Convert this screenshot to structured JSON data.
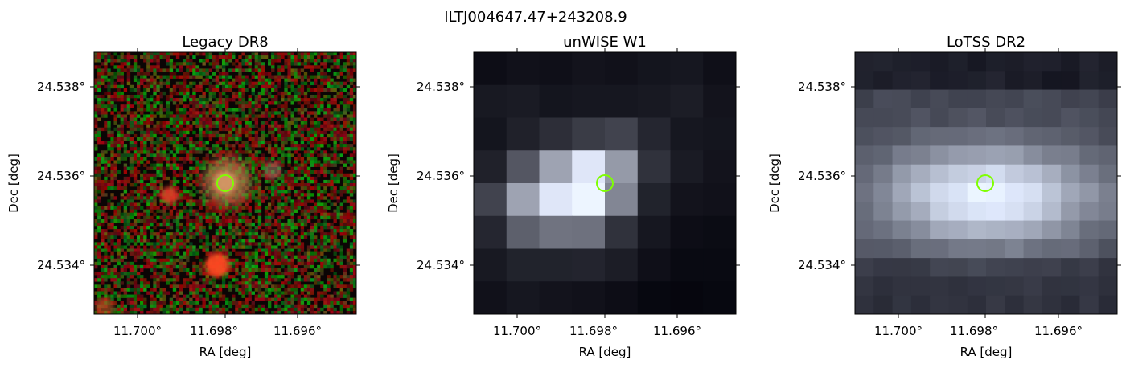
{
  "figure": {
    "title": "ILTJ004647.47+243208.9"
  },
  "panels": [
    {
      "title": "Legacy DR8",
      "xlabel": "RA [deg]",
      "ylabel": "Dec [deg]",
      "x_ticks": [
        "11.700°",
        "11.698°",
        "11.696°"
      ],
      "y_ticks": [
        "24.538°",
        "24.536°",
        "24.534°"
      ],
      "image": "colour optical cutout, red/green noise background with three compact sources"
    },
    {
      "title": "unWISE W1",
      "xlabel": "RA [deg]",
      "ylabel": "Dec [deg]",
      "x_ticks": [
        "11.700°",
        "11.698°",
        "11.696°"
      ],
      "y_ticks": [
        "24.538°",
        "24.536°",
        "24.534°"
      ],
      "image": "coarse-pixel grayscale infrared cutout with bright central source"
    },
    {
      "title": "LoTSS DR2",
      "xlabel": "RA [deg]",
      "ylabel": "Dec [deg]",
      "x_ticks": [
        "11.700°",
        "11.698°",
        "11.696°"
      ],
      "y_ticks": [
        "24.538°",
        "24.536°",
        "24.534°"
      ],
      "image": "grayscale radio cutout with extended central emission"
    }
  ],
  "marker": {
    "shape": "circle",
    "color": "#7fff00"
  },
  "colors": {
    "axis": "#000000",
    "marker": "#7fff00"
  }
}
